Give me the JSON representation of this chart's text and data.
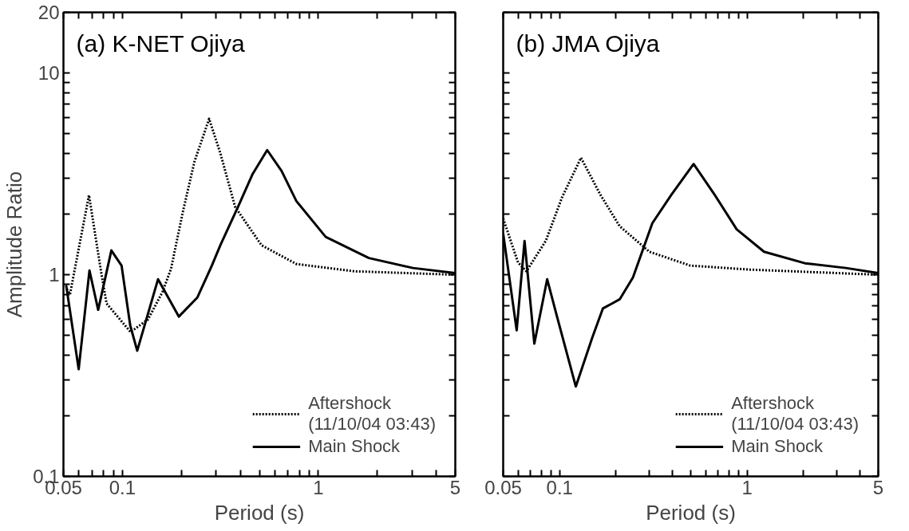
{
  "chart_data": [
    {
      "type": "line",
      "title": "(a) K-NET Ojiya",
      "xlabel": "Period (s)",
      "ylabel": "Amplitude Ratio",
      "log": "xy",
      "legend": "bottom right",
      "grid": false,
      "xlim": [
        0.05,
        5
      ],
      "ylim": [
        0.1,
        20
      ],
      "xticks": [
        0.05,
        {
          "value": 0.06,
          "label": null
        },
        {
          "value": 0.07,
          "label": null
        },
        {
          "value": 0.08,
          "label": null
        },
        {
          "value": 0.09,
          "label": null
        },
        0.1,
        {
          "value": 0.2,
          "label": null
        },
        {
          "value": 0.3,
          "label": null
        },
        {
          "value": 0.4,
          "label": null
        },
        {
          "value": 0.5,
          "label": null
        },
        {
          "value": 0.6,
          "label": null
        },
        {
          "value": 0.7,
          "label": null
        },
        {
          "value": 0.8,
          "label": null
        },
        {
          "value": 0.9,
          "label": null
        },
        1,
        {
          "value": 2,
          "label": null
        },
        {
          "value": 3,
          "label": null
        },
        {
          "value": 4,
          "label": null
        },
        5
      ],
      "yticks": [
        0.1,
        {
          "value": 0.2,
          "label": null
        },
        {
          "value": 0.3,
          "label": null
        },
        {
          "value": 0.4,
          "label": null
        },
        {
          "value": 0.5,
          "label": null
        },
        {
          "value": 0.6,
          "label": null
        },
        {
          "value": 0.7,
          "label": null
        },
        {
          "value": 0.8,
          "label": null
        },
        {
          "value": 0.9,
          "label": null
        },
        1,
        {
          "value": 2,
          "label": null
        },
        {
          "value": 3,
          "label": null
        },
        {
          "value": 4,
          "label": null
        },
        {
          "value": 5,
          "label": null
        },
        {
          "value": 6,
          "label": null
        },
        {
          "value": 7,
          "label": null
        },
        {
          "value": 8,
          "label": null
        },
        {
          "value": 9,
          "label": null
        },
        10,
        20
      ],
      "series": [
        {
          "name": "Aftershock\n(11/10/04 03:43)",
          "color": "#000000",
          "line_style": "dotted",
          "x": [
            0.052,
            0.054,
            0.0675,
            0.078,
            0.083,
            0.11,
            0.135,
            0.16,
            0.177,
            0.203,
            0.233,
            0.277,
            0.316,
            0.376,
            0.513,
            0.773,
            1.53,
            5
          ],
          "values": [
            0.85,
            0.8,
            2.48,
            1.02,
            0.72,
            0.52,
            0.6,
            0.82,
            1.07,
            2.03,
            3.63,
            5.93,
            4.01,
            2.17,
            1.4,
            1.13,
            1.04,
            1.0
          ]
        },
        {
          "name": "Main Shock",
          "color": "#000000",
          "line_style": "solid",
          "x": [
            0.0516,
            0.0598,
            0.0679,
            0.0752,
            0.0878,
            0.099,
            0.1096,
            0.119,
            0.152,
            0.194,
            0.241,
            0.286,
            0.316,
            0.389,
            0.462,
            0.548,
            0.649,
            0.772,
            1.09,
            1.81,
            3.04,
            5
          ],
          "values": [
            0.89,
            0.34,
            1.05,
            0.67,
            1.32,
            1.11,
            0.56,
            0.42,
            0.95,
            0.62,
            0.77,
            1.11,
            1.4,
            2.17,
            3.16,
            4.15,
            3.27,
            2.32,
            1.54,
            1.21,
            1.08,
            1.02
          ]
        }
      ]
    },
    {
      "type": "line",
      "title": "(b) JMA Ojiya",
      "xlabel": "Period (s)",
      "log": "xy",
      "legend": "bottom right",
      "grid": false,
      "tick_labels": "x",
      "xlim": [
        0.05,
        5
      ],
      "ylim": [
        0.1,
        20
      ],
      "xticks": [
        0.05,
        {
          "value": 0.06,
          "label": null
        },
        {
          "value": 0.07,
          "label": null
        },
        {
          "value": 0.08,
          "label": null
        },
        {
          "value": 0.09,
          "label": null
        },
        0.1,
        {
          "value": 0.2,
          "label": null
        },
        {
          "value": 0.3,
          "label": null
        },
        {
          "value": 0.4,
          "label": null
        },
        {
          "value": 0.5,
          "label": null
        },
        {
          "value": 0.6,
          "label": null
        },
        {
          "value": 0.7,
          "label": null
        },
        {
          "value": 0.8,
          "label": null
        },
        {
          "value": 0.9,
          "label": null
        },
        1,
        {
          "value": 2,
          "label": null
        },
        {
          "value": 3,
          "label": null
        },
        {
          "value": 4,
          "label": null
        },
        5
      ],
      "yticks": [
        0.1,
        {
          "value": 0.2,
          "label": null
        },
        {
          "value": 0.3,
          "label": null
        },
        {
          "value": 0.4,
          "label": null
        },
        {
          "value": 0.5,
          "label": null
        },
        {
          "value": 0.6,
          "label": null
        },
        {
          "value": 0.7,
          "label": null
        },
        {
          "value": 0.8,
          "label": null
        },
        {
          "value": 0.9,
          "label": null
        },
        1,
        {
          "value": 2,
          "label": null
        },
        {
          "value": 3,
          "label": null
        },
        {
          "value": 4,
          "label": null
        },
        {
          "value": 5,
          "label": null
        },
        {
          "value": 6,
          "label": null
        },
        {
          "value": 7,
          "label": null
        },
        {
          "value": 8,
          "label": null
        },
        {
          "value": 9,
          "label": null
        },
        10,
        20
      ],
      "series": [
        {
          "name": "Aftershock\n(11/10/04 03:43)",
          "color": "#000000",
          "line_style": "dotted",
          "x": [
            0.05,
            0.06,
            0.0665,
            0.0843,
            0.103,
            0.13,
            0.165,
            0.209,
            0.301,
            0.497,
            1.04,
            5
          ],
          "values": [
            1.9,
            1.15,
            1.04,
            1.47,
            2.42,
            3.8,
            2.49,
            1.74,
            1.3,
            1.11,
            1.06,
            1.0
          ]
        },
        {
          "name": "Main Shock",
          "color": "#000000",
          "line_style": "solid",
          "x": [
            0.05,
            0.059,
            0.065,
            0.0733,
            0.0858,
            0.0964,
            0.122,
            0.149,
            0.17,
            0.209,
            0.246,
            0.312,
            0.394,
            0.518,
            0.671,
            0.879,
            1.23,
            2.03,
            3.36,
            5
          ],
          "values": [
            1.6,
            0.53,
            1.47,
            0.455,
            0.95,
            0.63,
            0.279,
            0.485,
            0.68,
            0.755,
            0.97,
            1.8,
            2.49,
            3.54,
            2.49,
            1.68,
            1.3,
            1.14,
            1.08,
            1.02
          ]
        }
      ]
    }
  ]
}
